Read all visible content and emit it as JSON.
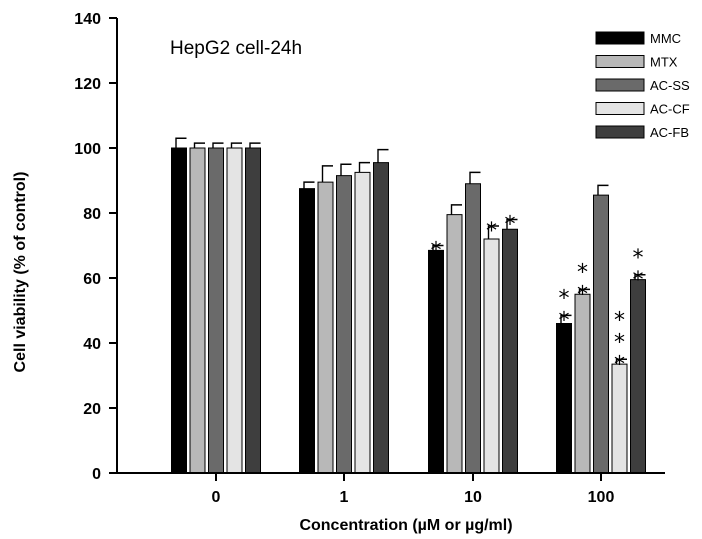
{
  "chart_data": {
    "type": "bar",
    "annotation": "HepG2 cell-24h",
    "xlabel": "Concentration (µM or µg/ml)",
    "ylabel": "Cell viability (% of control)",
    "ylim": [
      0,
      140
    ],
    "yticks": [
      0,
      20,
      40,
      60,
      80,
      100,
      120,
      140
    ],
    "categories": [
      "0",
      "1",
      "10",
      "100"
    ],
    "grid": false,
    "legend_position": "top-right",
    "significance_marker": "*",
    "series": [
      {
        "name": "MMC",
        "color": "#000000",
        "values": [
          100,
          87.5,
          68.5,
          46
        ],
        "errors": [
          3,
          2,
          1.5,
          2.5
        ],
        "stars": [
          0,
          0,
          1,
          2
        ]
      },
      {
        "name": "MTX",
        "color": "#b8b8b8",
        "values": [
          100,
          89.5,
          79.5,
          55
        ],
        "errors": [
          1.5,
          5,
          3,
          1.5
        ],
        "stars": [
          0,
          0,
          0,
          2
        ]
      },
      {
        "name": "AC-SS",
        "color": "#6a6a6a",
        "values": [
          100,
          91.5,
          89,
          85.5
        ],
        "errors": [
          1.5,
          3.5,
          3.5,
          3
        ],
        "stars": [
          0,
          0,
          0,
          0
        ]
      },
      {
        "name": "AC-CF",
        "color": "#e4e4e4",
        "values": [
          100,
          92.5,
          72,
          33.5
        ],
        "errors": [
          1.5,
          3,
          4,
          1.5
        ],
        "stars": [
          0,
          0,
          1,
          3
        ]
      },
      {
        "name": "AC-FB",
        "color": "#3e3e3e",
        "values": [
          100,
          95.5,
          75,
          59.5
        ],
        "errors": [
          1.5,
          4,
          3,
          1.5
        ],
        "stars": [
          0,
          0,
          1,
          2
        ]
      }
    ]
  }
}
